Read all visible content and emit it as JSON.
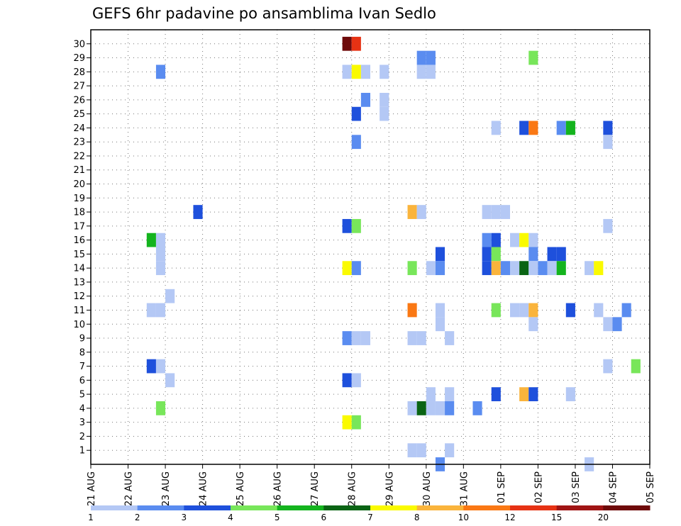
{
  "chart_data": {
    "type": "heatmap",
    "title": "GEFS 6hr padavine po ansamblima Ivan Sedlo",
    "xlabel": "",
    "ylabel": "",
    "x_ticks": [
      "21 AUG",
      "22 AUG",
      "23 AUG",
      "24 AUG",
      "25 AUG",
      "26 AUG",
      "27 AUG",
      "28 AUG",
      "29 AUG",
      "30 AUG",
      "31 AUG",
      "01 SEP",
      "02 SEP",
      "03 SEP",
      "04 SEP",
      "05 SEP"
    ],
    "y_ticks": [
      1,
      2,
      3,
      4,
      5,
      6,
      7,
      8,
      9,
      10,
      11,
      12,
      13,
      14,
      15,
      16,
      17,
      18,
      19,
      20,
      21,
      22,
      23,
      24,
      25,
      26,
      27,
      28,
      29,
      30
    ],
    "ylim": [
      0,
      30
    ],
    "x_step_hours": 6,
    "grid": true,
    "legend": {
      "placement": "bottom",
      "levels": [
        "1",
        "2",
        "3",
        "4",
        "5",
        "6",
        "7",
        "8",
        "10",
        "12",
        "15",
        "20"
      ],
      "colors": [
        "#b4c8f5",
        "#5a8cf0",
        "#1e50dc",
        "#78e65a",
        "#14b41e",
        "#0a6414",
        "#fafa00",
        "#fab43c",
        "#fa7814",
        "#e63214",
        "#a01414",
        "#6e0a0a"
      ]
    },
    "cells": [
      [
        6.75,
        30,
        11
      ],
      [
        7.0,
        30,
        9
      ],
      [
        1.75,
        28,
        1
      ],
      [
        6.75,
        28,
        0
      ],
      [
        7.0,
        28,
        6
      ],
      [
        7.25,
        28,
        0
      ],
      [
        7.75,
        28,
        0
      ],
      [
        8.75,
        28,
        0
      ],
      [
        9.0,
        28,
        0
      ],
      [
        8.75,
        29,
        1
      ],
      [
        9.0,
        29,
        1
      ],
      [
        11.75,
        29,
        3
      ],
      [
        7.25,
        26,
        1
      ],
      [
        7.75,
        26,
        0
      ],
      [
        15.75,
        26,
        0
      ],
      [
        7.0,
        25,
        2
      ],
      [
        7.75,
        25,
        0
      ],
      [
        10.75,
        24,
        0
      ],
      [
        11.5,
        24,
        2
      ],
      [
        11.75,
        24,
        8
      ],
      [
        12.5,
        24,
        1
      ],
      [
        12.75,
        24,
        4
      ],
      [
        13.75,
        24,
        2
      ],
      [
        15.5,
        24,
        0
      ],
      [
        7.0,
        23,
        1
      ],
      [
        13.75,
        23,
        0
      ],
      [
        15.75,
        23,
        0
      ],
      [
        15.75,
        20,
        0
      ],
      [
        2.75,
        18,
        2
      ],
      [
        8.5,
        18,
        7
      ],
      [
        8.75,
        18,
        0
      ],
      [
        10.5,
        18,
        0
      ],
      [
        10.75,
        18,
        0
      ],
      [
        11.0,
        18,
        0
      ],
      [
        6.75,
        17,
        2
      ],
      [
        7.0,
        17,
        3
      ],
      [
        13.75,
        17,
        0
      ],
      [
        1.5,
        16,
        4
      ],
      [
        1.75,
        16,
        0
      ],
      [
        10.5,
        16,
        1
      ],
      [
        10.75,
        16,
        2
      ],
      [
        11.25,
        16,
        0
      ],
      [
        11.5,
        16,
        6
      ],
      [
        11.75,
        16,
        0
      ],
      [
        1.75,
        15,
        0
      ],
      [
        9.25,
        15,
        2
      ],
      [
        10.5,
        15,
        2
      ],
      [
        10.75,
        15,
        3
      ],
      [
        11.75,
        15,
        1
      ],
      [
        12.25,
        15,
        2
      ],
      [
        12.5,
        15,
        2
      ],
      [
        1.75,
        14,
        0
      ],
      [
        6.75,
        14,
        6
      ],
      [
        7.0,
        14,
        1
      ],
      [
        8.5,
        14,
        3
      ],
      [
        9.0,
        14,
        0
      ],
      [
        9.25,
        14,
        1
      ],
      [
        10.5,
        14,
        2
      ],
      [
        10.75,
        14,
        7
      ],
      [
        11.0,
        14,
        1
      ],
      [
        11.25,
        14,
        0
      ],
      [
        11.5,
        14,
        5
      ],
      [
        11.75,
        14,
        0
      ],
      [
        12.0,
        14,
        1
      ],
      [
        12.25,
        14,
        0
      ],
      [
        12.5,
        14,
        4
      ],
      [
        13.25,
        14,
        0
      ],
      [
        13.5,
        14,
        6
      ],
      [
        2.0,
        12,
        0
      ],
      [
        1.5,
        11,
        0
      ],
      [
        1.75,
        11,
        0
      ],
      [
        8.5,
        11,
        8
      ],
      [
        9.25,
        11,
        0
      ],
      [
        10.75,
        11,
        3
      ],
      [
        11.25,
        11,
        0
      ],
      [
        11.5,
        11,
        0
      ],
      [
        11.75,
        11,
        7
      ],
      [
        12.75,
        11,
        2
      ],
      [
        13.5,
        11,
        0
      ],
      [
        14.25,
        11,
        1
      ],
      [
        15.5,
        11,
        0
      ],
      [
        15.75,
        11,
        0
      ],
      [
        16.25,
        11,
        4
      ],
      [
        9.25,
        10,
        0
      ],
      [
        11.75,
        10,
        0
      ],
      [
        13.75,
        10,
        0
      ],
      [
        14.0,
        10,
        1
      ],
      [
        15.5,
        10,
        0
      ],
      [
        16.0,
        10,
        0
      ],
      [
        16.25,
        10,
        0
      ],
      [
        16.5,
        10,
        3
      ],
      [
        6.75,
        9,
        1
      ],
      [
        7.0,
        9,
        0
      ],
      [
        7.25,
        9,
        0
      ],
      [
        8.5,
        9,
        0
      ],
      [
        8.75,
        9,
        0
      ],
      [
        9.5,
        9,
        0
      ],
      [
        1.5,
        7,
        2
      ],
      [
        1.75,
        7,
        0
      ],
      [
        13.75,
        7,
        0
      ],
      [
        14.5,
        7,
        3
      ],
      [
        15.5,
        7,
        5
      ],
      [
        15.75,
        7,
        1
      ],
      [
        16.25,
        7,
        1
      ],
      [
        16.5,
        7,
        7
      ],
      [
        16.75,
        7,
        0
      ],
      [
        2.0,
        6,
        0
      ],
      [
        6.75,
        6,
        2
      ],
      [
        7.0,
        6,
        0
      ],
      [
        9.0,
        5,
        0
      ],
      [
        9.5,
        5,
        0
      ],
      [
        10.75,
        5,
        2
      ],
      [
        11.5,
        5,
        7
      ],
      [
        11.75,
        5,
        2
      ],
      [
        12.75,
        5,
        0
      ],
      [
        15.5,
        5,
        2
      ],
      [
        16.25,
        5,
        0
      ],
      [
        1.75,
        4,
        3
      ],
      [
        8.5,
        4,
        0
      ],
      [
        8.75,
        4,
        5
      ],
      [
        9.0,
        4,
        0
      ],
      [
        9.25,
        4,
        0
      ],
      [
        9.5,
        4,
        1
      ],
      [
        10.25,
        4,
        1
      ],
      [
        6.75,
        3,
        6
      ],
      [
        7.0,
        3,
        3
      ],
      [
        8.5,
        1,
        0
      ],
      [
        8.75,
        1,
        0
      ],
      [
        9.5,
        1,
        0
      ],
      [
        9.25,
        0,
        1
      ],
      [
        13.25,
        0,
        0
      ]
    ]
  }
}
